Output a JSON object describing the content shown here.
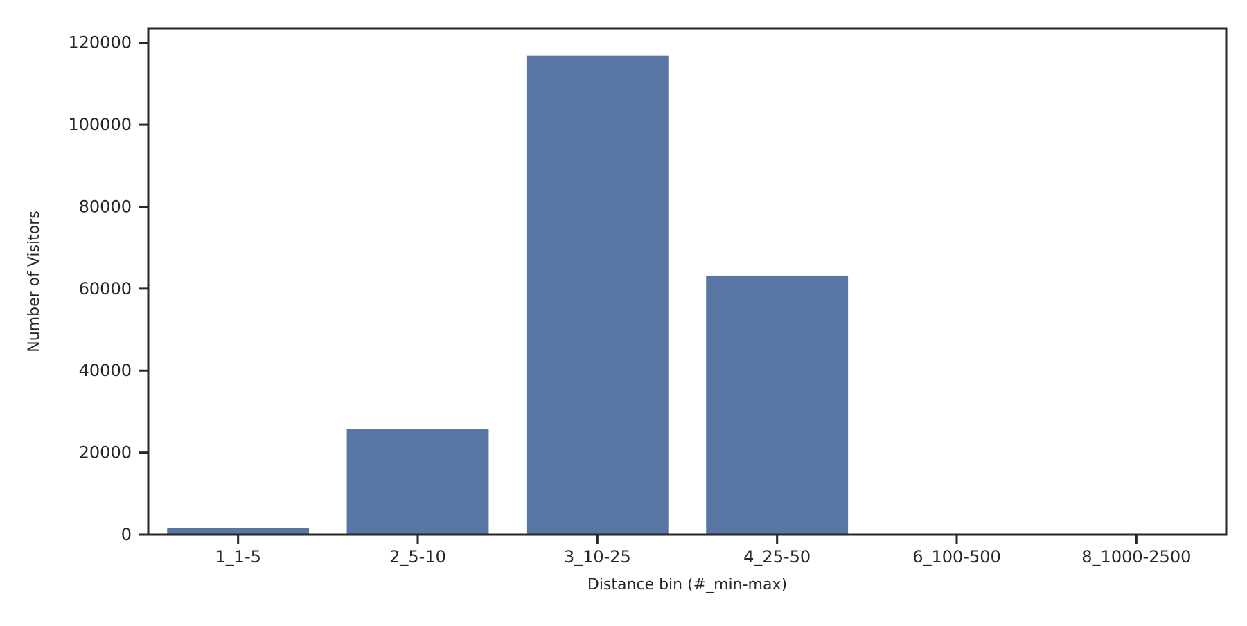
{
  "chart_data": {
    "type": "bar",
    "title": "",
    "xlabel": "Distance bin (#_min-max)",
    "ylabel": "Number of Visitors",
    "categories": [
      "1_1-5",
      "2_5-10",
      "3_10-25",
      "4_25-50",
      "6_100-500",
      "8_1000-2500"
    ],
    "values": [
      1600,
      25800,
      116800,
      63200,
      0,
      0
    ],
    "ylim": [
      0,
      123500
    ],
    "yticks": [
      0,
      20000,
      40000,
      60000,
      80000,
      100000,
      120000
    ],
    "grid": false,
    "legend": "none",
    "bar_color": "#5975a4",
    "axis_color": "#262626"
  }
}
